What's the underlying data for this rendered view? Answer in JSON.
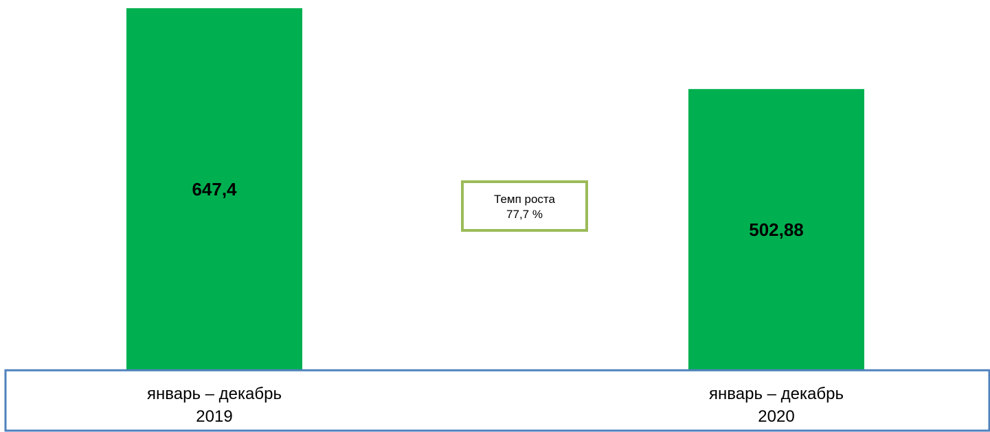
{
  "chart_data": {
    "type": "bar",
    "categories": [
      [
        "январь – декабрь",
        "2019"
      ],
      [
        "январь – декабрь",
        "2020"
      ]
    ],
    "series": [
      {
        "values": [
          647.4,
          502.88
        ],
        "value_labels": [
          "647,4",
          "502,88"
        ]
      }
    ],
    "ylim": [
      0,
      647.4
    ],
    "grid": false,
    "legend": "none",
    "annotation": {
      "line1": "Темп роста",
      "line2": "77,7 %"
    }
  },
  "colors": {
    "bar": "#00b050",
    "axis_box": "#4f81bd",
    "annotation_border": "#9bbb59"
  }
}
